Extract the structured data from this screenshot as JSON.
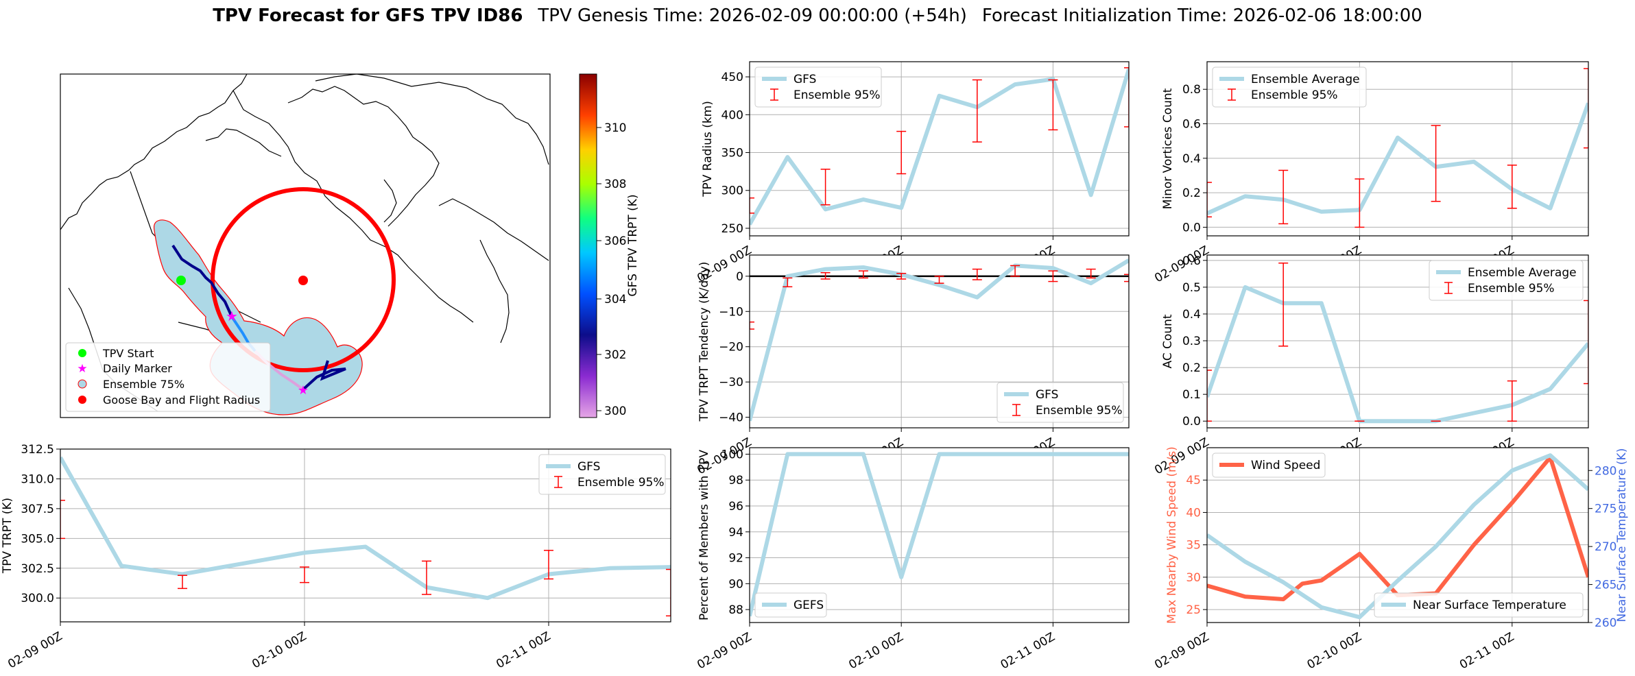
{
  "title": {
    "bold": "TPV Forecast for GFS TPV ID86",
    "genesis": "TPV Genesis Time: 2026-02-09 00:00:00 (+54h)",
    "init": "Forecast Initialization Time: 2026-02-06 18:00:00"
  },
  "colors": {
    "gfs_line": "#add8e6",
    "err": "#ff0000",
    "wind": "#ff6347",
    "temp_axis": "#4169e1",
    "wind_axis": "#ff6347"
  },
  "map": {
    "colorbar_label": "GFS TPV TRPT (K)",
    "colorbar_ticks": [
      "300",
      "302",
      "304",
      "306",
      "308",
      "310"
    ],
    "legend": [
      {
        "label": "TPV Start",
        "icon": "green-circle-icon"
      },
      {
        "label": "Daily Marker",
        "icon": "magenta-star-icon"
      },
      {
        "label": "Ensemble 75%",
        "icon": "lightblue-circle-icon"
      },
      {
        "label": "Goose Bay and Flight Radius",
        "icon": "red-circle-icon"
      }
    ]
  },
  "chart_data": [
    {
      "id": "trpt",
      "type": "line",
      "xticks": [
        "02-09 00Z",
        "02-10 00Z",
        "02-11 00Z"
      ],
      "xlim": [
        0,
        2.5
      ],
      "ylabel": "TPV TRPT (K)",
      "ylim": [
        298,
        312.5
      ],
      "yticks": [
        "300.0",
        "302.5",
        "305.0",
        "307.5",
        "310.0",
        "312.5"
      ],
      "ytick_values": [
        300,
        302.5,
        305,
        307.5,
        310,
        312.5
      ],
      "legend": [
        {
          "label": "GFS",
          "kind": "line"
        },
        {
          "label": "Ensemble 95%",
          "kind": "errorbar"
        }
      ],
      "legend_pos": "top-right",
      "series": [
        {
          "name": "GFS",
          "x": [
            0,
            0.25,
            0.5,
            0.75,
            1.0,
            1.25,
            1.5,
            1.75,
            2.0,
            2.25,
            2.5
          ],
          "values": [
            311.8,
            302.7,
            302.0,
            302.9,
            303.8,
            304.3,
            300.9,
            300.0,
            302.0,
            302.5,
            302.6
          ]
        }
      ],
      "error_bars": [
        {
          "x": 0,
          "low": 305.0,
          "high": 308.2
        },
        {
          "x": 0.5,
          "low": 300.8,
          "high": 301.9
        },
        {
          "x": 1.0,
          "low": 301.3,
          "high": 302.6
        },
        {
          "x": 1.5,
          "low": 300.3,
          "high": 303.1
        },
        {
          "x": 2.0,
          "low": 301.6,
          "high": 304.0
        },
        {
          "x": 2.5,
          "low": 298.5,
          "high": 302.4
        }
      ]
    },
    {
      "id": "radius",
      "type": "line",
      "xticks": [
        "02-09 00Z",
        "02-10 00Z",
        "02-11 00Z"
      ],
      "xlim": [
        0,
        2.5
      ],
      "ylabel": "TPV Radius (km)",
      "ylim": [
        240,
        470
      ],
      "yticks": [
        "250",
        "300",
        "350",
        "400",
        "450"
      ],
      "ytick_values": [
        250,
        300,
        350,
        400,
        450
      ],
      "legend": [
        {
          "label": "GFS",
          "kind": "line"
        },
        {
          "label": "Ensemble 95%",
          "kind": "errorbar"
        }
      ],
      "legend_pos": "top-left",
      "series": [
        {
          "name": "GFS",
          "x": [
            0,
            0.25,
            0.5,
            0.75,
            1.0,
            1.25,
            1.5,
            1.75,
            2.0,
            2.25,
            2.5
          ],
          "values": [
            255,
            344,
            275,
            288,
            277,
            425,
            410,
            440,
            447,
            294,
            460
          ]
        }
      ],
      "error_bars": [
        {
          "x": 0,
          "low": 270,
          "high": 290
        },
        {
          "x": 0.5,
          "low": 281,
          "high": 328
        },
        {
          "x": 1.0,
          "low": 322,
          "high": 378
        },
        {
          "x": 1.5,
          "low": 364,
          "high": 446
        },
        {
          "x": 2.0,
          "low": 380,
          "high": 446
        },
        {
          "x": 2.5,
          "low": 384,
          "high": 462
        }
      ]
    },
    {
      "id": "minor",
      "type": "line",
      "xticks": [
        "02-09 00Z",
        "02-10 00Z",
        "02-11 00Z"
      ],
      "xlim": [
        0,
        2.5
      ],
      "ylabel": "Minor Vortices Count",
      "ylim": [
        -0.05,
        0.96
      ],
      "yticks": [
        "0.0",
        "0.2",
        "0.4",
        "0.6",
        "0.8"
      ],
      "ytick_values": [
        0,
        0.2,
        0.4,
        0.6,
        0.8
      ],
      "legend": [
        {
          "label": "Ensemble Average",
          "kind": "line"
        },
        {
          "label": "Ensemble 95%",
          "kind": "errorbar"
        }
      ],
      "legend_pos": "top-left",
      "series": [
        {
          "name": "Ensemble Average",
          "x": [
            0,
            0.25,
            0.5,
            0.75,
            1.0,
            1.25,
            1.5,
            1.75,
            2.0,
            2.25,
            2.5
          ],
          "values": [
            0.08,
            0.18,
            0.16,
            0.09,
            0.1,
            0.52,
            0.35,
            0.38,
            0.22,
            0.11,
            0.72
          ]
        }
      ],
      "error_bars": [
        {
          "x": 0,
          "low": 0.06,
          "high": 0.26
        },
        {
          "x": 0.5,
          "low": 0.02,
          "high": 0.33
        },
        {
          "x": 1.0,
          "low": 0.0,
          "high": 0.28
        },
        {
          "x": 1.5,
          "low": 0.15,
          "high": 0.59
        },
        {
          "x": 2.0,
          "low": 0.11,
          "high": 0.36
        },
        {
          "x": 2.5,
          "low": 0.46,
          "high": 0.92
        }
      ]
    },
    {
      "id": "tendency",
      "type": "line",
      "xticks": [
        "02-09 00Z",
        "02-10 00Z",
        "02-11 00Z"
      ],
      "xlim": [
        0,
        2.5
      ],
      "ylabel": "TPV TRPT Tendency (K/day)",
      "ylim": [
        -43,
        6
      ],
      "yticks": [
        "−40",
        "−30",
        "−20",
        "−10",
        "0"
      ],
      "ytick_values": [
        -40,
        -30,
        -20,
        -10,
        0
      ],
      "legend": [
        {
          "label": "GFS",
          "kind": "line"
        },
        {
          "label": "Ensemble 95%",
          "kind": "errorbar"
        }
      ],
      "legend_pos": "bottom-right",
      "series": [
        {
          "name": "GFS",
          "x": [
            0,
            0.25,
            0.5,
            0.75,
            1.0,
            1.25,
            1.5,
            1.75,
            2.0,
            2.25,
            2.5
          ],
          "values": [
            -41,
            0,
            2,
            2.5,
            0.5,
            -2.5,
            -6,
            3,
            2.3,
            -2,
            4.5
          ]
        }
      ],
      "error_bars": [
        {
          "x": 0,
          "low": -15,
          "high": -13
        },
        {
          "x": 0.25,
          "low": -3,
          "high": -0.5
        },
        {
          "x": 0.5,
          "low": -0.8,
          "high": 1
        },
        {
          "x": 0.75,
          "low": -0.5,
          "high": 1.5
        },
        {
          "x": 1.0,
          "low": -0.8,
          "high": 0.8
        },
        {
          "x": 1.25,
          "low": -2,
          "high": 0
        },
        {
          "x": 1.5,
          "low": -1,
          "high": 2
        },
        {
          "x": 1.75,
          "low": 0,
          "high": 3
        },
        {
          "x": 2.0,
          "low": -1.5,
          "high": 1.5
        },
        {
          "x": 2.25,
          "low": -0.5,
          "high": 2
        },
        {
          "x": 2.5,
          "low": -1.5,
          "high": 0.5
        }
      ],
      "zero_line": true
    },
    {
      "id": "ac",
      "type": "line",
      "xticks": [
        "02-09 00Z",
        "02-10 00Z",
        "02-11 00Z"
      ],
      "xlim": [
        0,
        2.5
      ],
      "ylabel": "AC Count",
      "ylim": [
        -0.025,
        0.62
      ],
      "yticks": [
        "0.0",
        "0.1",
        "0.2",
        "0.3",
        "0.4",
        "0.5",
        "0.6"
      ],
      "ytick_values": [
        0,
        0.1,
        0.2,
        0.3,
        0.4,
        0.5,
        0.6
      ],
      "legend": [
        {
          "label": "Ensemble Average",
          "kind": "line"
        },
        {
          "label": "Ensemble 95%",
          "kind": "errorbar"
        }
      ],
      "legend_pos": "top-right",
      "series": [
        {
          "name": "Ensemble Average",
          "x": [
            0,
            0.25,
            0.5,
            0.75,
            1.0,
            1.25,
            1.5,
            1.75,
            2.0,
            2.25,
            2.5
          ],
          "values": [
            0.09,
            0.5,
            0.44,
            0.44,
            0.0,
            0.0,
            0.0,
            0.03,
            0.06,
            0.12,
            0.29
          ]
        }
      ],
      "error_bars": [
        {
          "x": 0,
          "low": 0.0,
          "high": 0.19
        },
        {
          "x": 0.5,
          "low": 0.28,
          "high": 0.59
        },
        {
          "x": 1.0,
          "low": 0.0,
          "high": 0.0
        },
        {
          "x": 1.5,
          "low": 0.0,
          "high": 0.0
        },
        {
          "x": 2.0,
          "low": 0.0,
          "high": 0.15
        },
        {
          "x": 2.5,
          "low": 0.14,
          "high": 0.45
        }
      ]
    },
    {
      "id": "members",
      "type": "line",
      "xticks": [
        "02-09 00Z",
        "02-10 00Z",
        "02-11 00Z"
      ],
      "xlim": [
        0,
        2.5
      ],
      "ylabel": "Percent of Members with TPV",
      "ylim": [
        87,
        100.5
      ],
      "yticks": [
        "88",
        "90",
        "92",
        "94",
        "96",
        "98",
        "100"
      ],
      "ytick_values": [
        88,
        90,
        92,
        94,
        96,
        98,
        100
      ],
      "legend": [
        {
          "label": "GEFS",
          "kind": "line"
        }
      ],
      "legend_pos": "bottom-left",
      "series": [
        {
          "name": "GEFS",
          "x": [
            0,
            0.25,
            0.5,
            0.75,
            1.0,
            1.25,
            1.5,
            1.75,
            2.0,
            2.25,
            2.5
          ],
          "values": [
            87.5,
            100,
            100,
            100,
            90.5,
            100,
            100,
            100,
            100,
            100,
            100
          ]
        }
      ],
      "error_bars": []
    },
    {
      "id": "wind",
      "type": "line",
      "xticks": [
        "02-09 00Z",
        "02-10 00Z",
        "02-11 00Z"
      ],
      "xlim": [
        0,
        2.5
      ],
      "ylabel": "Max Nearby Wind Speed (m/s)",
      "ylim": [
        23,
        50
      ],
      "yticks": [
        "25",
        "30",
        "35",
        "40",
        "45"
      ],
      "ytick_values": [
        25,
        30,
        35,
        40,
        45
      ],
      "y2label": "Near Surface Temperature (K)",
      "y2lim": [
        260,
        283
      ],
      "y2ticks": [
        "260",
        "265",
        "270",
        "275",
        "280"
      ],
      "y2tick_values": [
        260,
        265,
        270,
        275,
        280
      ],
      "legend": [
        {
          "label": "Wind Speed",
          "kind": "line"
        }
      ],
      "legend2": [
        {
          "label": "Near Surface Temperature",
          "kind": "line"
        }
      ],
      "series": [
        {
          "name": "Wind Speed",
          "axis": "left",
          "x": [
            0,
            0.25,
            0.5,
            0.625,
            0.75,
            1.0,
            1.25,
            1.5,
            1.75,
            2.0,
            2.25,
            2.5
          ],
          "values": [
            28.7,
            27.0,
            26.6,
            29.0,
            29.5,
            33.6,
            27.2,
            27.5,
            35.0,
            41.5,
            48.5,
            30.0
          ]
        },
        {
          "name": "Near Surface Temperature",
          "axis": "right",
          "x": [
            0,
            0.25,
            0.5,
            0.75,
            1.0,
            1.25,
            1.5,
            1.75,
            2.0,
            2.25,
            2.5
          ],
          "values": [
            271.5,
            268.0,
            265.3,
            262.0,
            260.7,
            265.5,
            270.0,
            275.5,
            280.0,
            282.0,
            277.5
          ]
        }
      ],
      "error_bars": []
    }
  ]
}
